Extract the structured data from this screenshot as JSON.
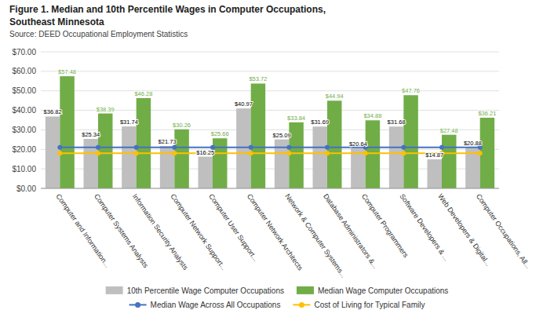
{
  "chart_data": {
    "type": "bar",
    "title": "Figure 1. Median and 10th Percentile Wages in Computer Occupations,",
    "subtitle": "Southeast Minnesota",
    "annotations": [
      "Source: DEED Occupational Employment Statistics"
    ],
    "categories": [
      "Computer and Information...",
      "Computer Systems Analysts",
      "Information Security Analysts",
      "Computer Network Support...",
      "Computer User Support...",
      "Computer Network Architects",
      "Network & Computer Systems...",
      "Database Administrators &...",
      "Computer Programmers",
      "Software Developers & ...",
      "Web Developers & Digital...",
      "Computer Occupations, All..."
    ],
    "series": [
      {
        "name": "10th Percentile Wage Computer Occupations",
        "type": "bar",
        "color": "#bfbfbf",
        "values": [
          36.82,
          25.34,
          31.74,
          21.73,
          16.25,
          40.97,
          25.09,
          31.69,
          20.64,
          31.68,
          14.87,
          20.88
        ],
        "value_labels": [
          "$36.82",
          "$25.34",
          "$31.74",
          "$21.73",
          "$16.25",
          "$40.97",
          "$25.09",
          "$31.69",
          "$20.64",
          "$31.68",
          "$14.87",
          "$20.88"
        ]
      },
      {
        "name": "Median Wage Computer Occupations",
        "type": "bar",
        "color": "#70ad47",
        "values": [
          57.48,
          38.39,
          46.28,
          30.26,
          25.66,
          53.72,
          33.84,
          44.94,
          34.88,
          47.76,
          27.48,
          36.21
        ],
        "value_labels": [
          "$57.48",
          "$38.39",
          "$46.28",
          "$30.26",
          "$25.66",
          "$53.72",
          "$33.84",
          "$44.94",
          "$34.88",
          "$47.76",
          "$27.48",
          "$36.21"
        ]
      },
      {
        "name": "Median Wage Across All Occupations",
        "type": "line",
        "marker": "circle",
        "color": "#4472c4",
        "values": [
          21.0,
          21.0,
          21.0,
          21.0,
          21.0,
          21.0,
          21.0,
          21.0,
          21.0,
          21.0,
          21.0,
          21.0
        ]
      },
      {
        "name": "Cost of Living for Typical Family",
        "type": "line",
        "marker": "circle",
        "color": "#ffc000",
        "values": [
          18.0,
          18.0,
          18.0,
          18.0,
          18.0,
          18.0,
          18.0,
          18.0,
          18.0,
          18.0,
          18.0,
          18.0
        ]
      }
    ],
    "ylim": [
      0,
      70
    ],
    "yticks": [
      {
        "value": 0,
        "label": "$0.00"
      },
      {
        "value": 10,
        "label": "$10.00"
      },
      {
        "value": 20,
        "label": "$20.00"
      },
      {
        "value": 30,
        "label": "$30.00"
      },
      {
        "value": 40,
        "label": "$40.00"
      },
      {
        "value": 50,
        "label": "$50.00"
      },
      {
        "value": 60,
        "label": "$60.00"
      },
      {
        "value": 70,
        "label": "$70.00"
      }
    ],
    "grid": true,
    "data_labels": true,
    "legend": "bottom"
  }
}
